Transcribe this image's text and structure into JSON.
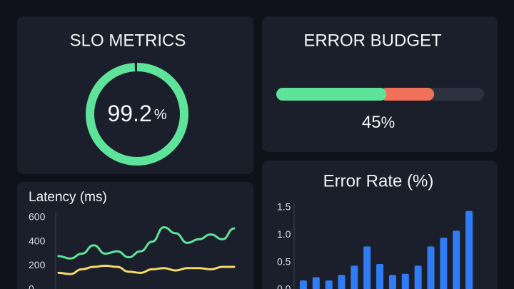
{
  "slo": {
    "title": "SLO METRICS",
    "value": 99.2,
    "unit": "%",
    "color": "#5ee39a"
  },
  "error_budget": {
    "title": "ERROR BUDGET",
    "value": 45,
    "unit": "%",
    "segments": [
      {
        "color": "#5ee39a",
        "value": 53
      },
      {
        "color": "#f0705a",
        "value": 23
      }
    ],
    "track_color": "#2c3240"
  },
  "chart_data": [
    {
      "type": "line",
      "title": "Latency (ms)",
      "series": [
        {
          "color": "#5ee39a",
          "values": [
            280,
            260,
            300,
            370,
            300,
            320,
            270,
            320,
            400,
            520,
            470,
            390,
            420,
            460,
            420,
            510
          ]
        },
        {
          "color": "#f5d96b",
          "values": [
            140,
            130,
            170,
            190,
            200,
            190,
            150,
            140,
            170,
            180,
            160,
            180,
            180,
            170,
            190,
            190
          ]
        }
      ],
      "ylim": [
        0,
        600
      ],
      "yticks": [
        0,
        200,
        400,
        600
      ]
    },
    {
      "type": "bar",
      "title": "Error Rate (%)",
      "color": "#2f7cf6",
      "values": [
        0.17,
        0.23,
        0.17,
        0.27,
        0.44,
        0.79,
        0.47,
        0.27,
        0.29,
        0.44,
        0.79,
        0.95,
        1.08,
        1.44
      ],
      "ylim": [
        0,
        1.5
      ],
      "yticks": [
        {
          "value": 0,
          "label": "0.0"
        },
        0.5,
        {
          "value": 1,
          "label": "1.0"
        },
        1.5
      ]
    }
  ]
}
